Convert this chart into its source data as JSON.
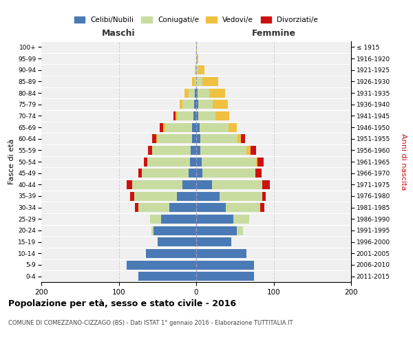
{
  "age_groups": [
    "0-4",
    "5-9",
    "10-14",
    "15-19",
    "20-24",
    "25-29",
    "30-34",
    "35-39",
    "40-44",
    "45-49",
    "50-54",
    "55-59",
    "60-64",
    "65-69",
    "70-74",
    "75-79",
    "80-84",
    "85-89",
    "90-94",
    "95-99",
    "100+"
  ],
  "birth_years": [
    "2011-2015",
    "2006-2010",
    "2001-2005",
    "1996-2000",
    "1991-1995",
    "1986-1990",
    "1981-1985",
    "1976-1980",
    "1971-1975",
    "1966-1970",
    "1961-1965",
    "1956-1960",
    "1951-1955",
    "1946-1950",
    "1941-1945",
    "1936-1940",
    "1931-1935",
    "1926-1930",
    "1921-1925",
    "1916-1920",
    "≤ 1915"
  ],
  "colors": {
    "celibi": "#4a7ab5",
    "coniugati": "#c8dca0",
    "vedovi": "#f0c040",
    "divorziati": "#cc1111"
  },
  "maschi": {
    "celibi": [
      75,
      90,
      65,
      50,
      55,
      45,
      35,
      25,
      18,
      10,
      8,
      7,
      5,
      5,
      4,
      3,
      2,
      0,
      0,
      0,
      0
    ],
    "coniugati": [
      0,
      0,
      0,
      0,
      3,
      15,
      40,
      55,
      65,
      60,
      55,
      50,
      45,
      35,
      20,
      15,
      8,
      2,
      1,
      0,
      0
    ],
    "vedovi": [
      0,
      0,
      0,
      0,
      0,
      0,
      0,
      0,
      0,
      0,
      0,
      0,
      2,
      3,
      3,
      3,
      5,
      3,
      1,
      0,
      0
    ],
    "divorziati": [
      0,
      0,
      0,
      0,
      0,
      0,
      4,
      5,
      7,
      5,
      5,
      5,
      5,
      4,
      2,
      0,
      0,
      0,
      0,
      0,
      0
    ]
  },
  "femmine": {
    "celibi": [
      75,
      75,
      65,
      45,
      52,
      48,
      38,
      30,
      20,
      8,
      7,
      5,
      5,
      4,
      3,
      3,
      2,
      0,
      0,
      0,
      0
    ],
    "coniugati": [
      0,
      0,
      0,
      0,
      8,
      20,
      45,
      55,
      65,
      68,
      70,
      60,
      48,
      38,
      22,
      18,
      15,
      8,
      3,
      1,
      0
    ],
    "vedovi": [
      0,
      0,
      0,
      0,
      0,
      0,
      0,
      0,
      0,
      0,
      2,
      5,
      5,
      10,
      18,
      20,
      20,
      20,
      8,
      2,
      1
    ],
    "divorziati": [
      0,
      0,
      0,
      0,
      0,
      0,
      5,
      5,
      10,
      8,
      8,
      7,
      5,
      0,
      0,
      0,
      0,
      0,
      0,
      0,
      0
    ]
  },
  "title": "Popolazione per età, sesso e stato civile - 2016",
  "subtitle": "COMUNE DI COMEZZANO-CIZZAGO (BS) - Dati ISTAT 1° gennaio 2016 - Elaborazione TUTTITALIA.IT",
  "xlabel_maschi": "Maschi",
  "xlabel_femmine": "Femmine",
  "ylabel_left": "Fasce di età",
  "ylabel_right": "Anni di nascita",
  "xlim": 200,
  "legend_labels": [
    "Celibi/Nubili",
    "Coniugati/e",
    "Vedovi/e",
    "Divorziati/e"
  ],
  "bg_color": "#f0f0f0",
  "grid_color": "#cccccc"
}
